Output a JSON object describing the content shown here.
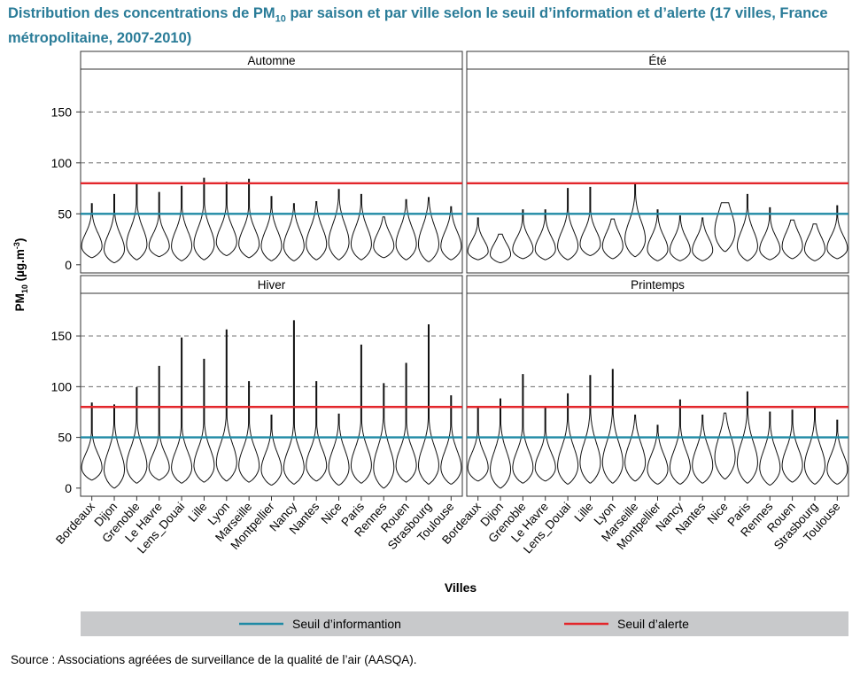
{
  "title": {
    "part1": "Distribution des concentrations de PM",
    "sub": "10",
    "part2": " par saison et par ville selon le seuil d’information et d’alerte (17 villes, France métropolitaine, 2007-2010)"
  },
  "source": "Source : Associations agréées de surveillance de la qualité de l’air (AASQA).",
  "chart_data": {
    "type": "violin",
    "xlabel": "Villes",
    "ylabel": {
      "main": "PM",
      "sub": "10",
      "unit": " (µg.m",
      "sup": "-3",
      "close": ")"
    },
    "ylim": [
      -8,
      192
    ],
    "yticks": [
      0,
      50,
      100,
      150
    ],
    "grid": "dashed horizontal at 50, 100, 150",
    "categories": [
      "Bordeaux",
      "Dijon",
      "Grenoble",
      "Le Havre",
      "Lens_Douai",
      "Lille",
      "Lyon",
      "Marseille",
      "Montpellier",
      "Nancy",
      "Nantes",
      "Nice",
      "Paris",
      "Rennes",
      "Rouen",
      "Strasbourg",
      "Toulouse"
    ],
    "thresholds": [
      {
        "label": "Seuil d’informantion",
        "value": 50,
        "color": "#1f8aa5"
      },
      {
        "label": "Seuil d’alerte",
        "value": 80,
        "color": "#e3262b"
      }
    ],
    "legend_position": "bottom",
    "panels": [
      {
        "name": "Automne",
        "max": [
          60,
          69,
          79,
          71,
          77,
          85,
          81,
          84,
          67,
          60,
          62,
          74,
          69,
          47,
          64,
          66,
          57
        ],
        "min": [
          7,
          2,
          5,
          8,
          4,
          5,
          9,
          7,
          4,
          4,
          5,
          5,
          5,
          7,
          5,
          3,
          5
        ],
        "mode": [
          18,
          15,
          20,
          18,
          18,
          20,
          22,
          20,
          18,
          18,
          20,
          22,
          20,
          18,
          20,
          20,
          18
        ]
      },
      {
        "name": "Été",
        "max": [
          46,
          30,
          54,
          54,
          75,
          76,
          45,
          79,
          54,
          48,
          46,
          61,
          69,
          56,
          44,
          40,
          58
        ],
        "min": [
          5,
          2,
          6,
          5,
          5,
          9,
          6,
          8,
          4,
          4,
          4,
          13,
          4,
          5,
          6,
          4,
          6
        ],
        "mode": [
          13,
          10,
          15,
          15,
          18,
          20,
          18,
          25,
          15,
          14,
          14,
          33,
          18,
          15,
          18,
          15,
          16
        ]
      },
      {
        "name": "Hiver",
        "max": [
          84,
          82,
          99,
          120,
          148,
          127,
          156,
          105,
          72,
          165,
          105,
          73,
          141,
          103,
          123,
          161,
          91
        ],
        "min": [
          8,
          0,
          5,
          8,
          5,
          6,
          7,
          6,
          3,
          4,
          7,
          3,
          5,
          0,
          6,
          4,
          4
        ],
        "mode": [
          20,
          18,
          22,
          20,
          20,
          22,
          25,
          22,
          18,
          20,
          22,
          20,
          22,
          20,
          22,
          22,
          20
        ]
      },
      {
        "name": "Printemps",
        "max": [
          79,
          88,
          112,
          80,
          93,
          111,
          117,
          72,
          62,
          87,
          72,
          74,
          95,
          75,
          77,
          79,
          67
        ],
        "min": [
          7,
          0,
          5,
          7,
          4,
          5,
          5,
          7,
          4,
          4,
          5,
          9,
          5,
          3,
          6,
          4,
          4
        ],
        "mode": [
          20,
          18,
          20,
          20,
          22,
          25,
          25,
          25,
          18,
          20,
          22,
          30,
          25,
          20,
          22,
          22,
          18
        ]
      }
    ]
  }
}
